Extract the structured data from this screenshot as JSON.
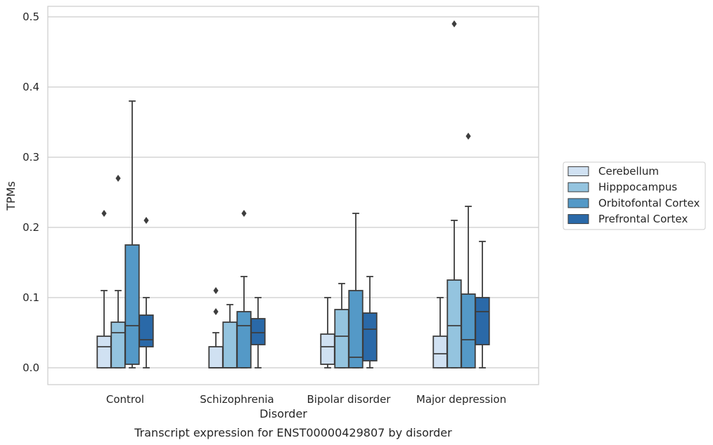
{
  "chart_data": {
    "type": "box",
    "caption": "Transcript expression for ENST00000429807 by disorder",
    "xlabel": "Disorder",
    "ylabel": "TPMs",
    "ylim": [
      -0.023,
      0.515
    ],
    "yticks": [
      0.0,
      0.1,
      0.2,
      0.3,
      0.4,
      0.5
    ],
    "ytick_labels": [
      "0.0",
      "0.1",
      "0.2",
      "0.3",
      "0.4",
      "0.5"
    ],
    "grid": true,
    "legend_position": "right",
    "categories": [
      "Control",
      "Schizophrenia",
      "Bipolar disorder",
      "Major depression"
    ],
    "series": [
      {
        "name": "Cerebellum",
        "color": "#d0e1f2",
        "boxes": [
          {
            "low": 0.0,
            "q1": 0.0,
            "median": 0.03,
            "q3": 0.045,
            "high": 0.11,
            "outliers": [
              0.22
            ]
          },
          {
            "low": 0.0,
            "q1": 0.0,
            "median": 0.0,
            "q3": 0.03,
            "high": 0.05,
            "outliers": [
              0.08,
              0.11
            ]
          },
          {
            "low": 0.0,
            "q1": 0.005,
            "median": 0.03,
            "q3": 0.048,
            "high": 0.1,
            "outliers": []
          },
          {
            "low": 0.0,
            "q1": 0.0,
            "median": 0.02,
            "q3": 0.045,
            "high": 0.1,
            "outliers": []
          }
        ]
      },
      {
        "name": "Hipppocampus",
        "color": "#94c4df",
        "boxes": [
          {
            "low": 0.0,
            "q1": 0.0,
            "median": 0.05,
            "q3": 0.065,
            "high": 0.11,
            "outliers": [
              0.27
            ]
          },
          {
            "low": 0.0,
            "q1": 0.0,
            "median": 0.0,
            "q3": 0.065,
            "high": 0.09,
            "outliers": []
          },
          {
            "low": 0.0,
            "q1": 0.0,
            "median": 0.045,
            "q3": 0.083,
            "high": 0.12,
            "outliers": []
          },
          {
            "low": 0.0,
            "q1": 0.0,
            "median": 0.06,
            "q3": 0.125,
            "high": 0.21,
            "outliers": [
              0.49
            ]
          }
        ]
      },
      {
        "name": "Orbitofontal Cortex",
        "color": "#5499c7",
        "boxes": [
          {
            "low": 0.0,
            "q1": 0.005,
            "median": 0.06,
            "q3": 0.175,
            "high": 0.38,
            "outliers": []
          },
          {
            "low": 0.0,
            "q1": 0.0,
            "median": 0.06,
            "q3": 0.08,
            "high": 0.13,
            "outliers": [
              0.22
            ]
          },
          {
            "low": 0.0,
            "q1": 0.0,
            "median": 0.015,
            "q3": 0.11,
            "high": 0.22,
            "outliers": []
          },
          {
            "low": 0.0,
            "q1": 0.0,
            "median": 0.04,
            "q3": 0.105,
            "high": 0.23,
            "outliers": [
              0.33
            ]
          }
        ]
      },
      {
        "name": "Prefrontal Cortex",
        "color": "#2a69a8",
        "boxes": [
          {
            "low": 0.0,
            "q1": 0.03,
            "median": 0.04,
            "q3": 0.075,
            "high": 0.1,
            "outliers": [
              0.21
            ]
          },
          {
            "low": 0.0,
            "q1": 0.033,
            "median": 0.05,
            "q3": 0.07,
            "high": 0.1,
            "outliers": []
          },
          {
            "low": 0.0,
            "q1": 0.01,
            "median": 0.055,
            "q3": 0.078,
            "high": 0.13,
            "outliers": []
          },
          {
            "low": 0.0,
            "q1": 0.033,
            "median": 0.08,
            "q3": 0.1,
            "high": 0.18,
            "outliers": []
          }
        ]
      }
    ]
  }
}
